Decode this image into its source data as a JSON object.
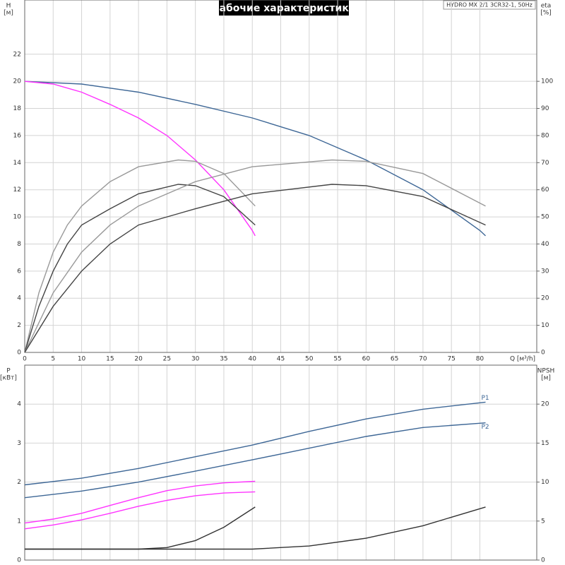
{
  "chart_data": [
    {
      "type": "line",
      "title": "Рабочие характеристики",
      "subtitle": "HYDRO MX 2/1 3CR32-1, 50Hz",
      "ylabel": "H",
      "yunit": "[м]",
      "y2label": "eta",
      "y2unit": "[%]",
      "xlabel": "Q [м³/h]",
      "xlim": [
        0,
        90
      ],
      "xticks": [
        0,
        5,
        10,
        15,
        20,
        25,
        30,
        35,
        40,
        45,
        50,
        55,
        60,
        65,
        70,
        75,
        80
      ],
      "ylim": [
        0,
        26
      ],
      "yticks": [
        0,
        2,
        4,
        6,
        8,
        10,
        12,
        14,
        16,
        18,
        20,
        22
      ],
      "y2lim": [
        0,
        130
      ],
      "y2ticks": [
        0,
        10,
        20,
        30,
        40,
        50,
        60,
        70,
        80,
        90,
        100
      ],
      "grid": true,
      "series": [
        {
          "color": "#3e6796",
          "x": [
            0,
            10,
            20,
            30,
            40,
            50,
            60,
            70,
            80,
            81
          ],
          "values": [
            20,
            19.8,
            19.2,
            18.3,
            17.3,
            16.0,
            14.2,
            12.0,
            9.0,
            8.6
          ]
        },
        {
          "color": "#ff33ff",
          "x": [
            0,
            5,
            10,
            15,
            20,
            25,
            30,
            35,
            40,
            40.5
          ],
          "values": [
            20,
            19.8,
            19.2,
            18.3,
            17.3,
            16.0,
            14.2,
            12.0,
            9.0,
            8.6
          ]
        },
        {
          "color": "#999999",
          "axis": "y2",
          "x": [
            0,
            2.5,
            5,
            7.5,
            10,
            15,
            20,
            27,
            30,
            35,
            40.5
          ],
          "values": [
            0,
            22,
            37,
            47,
            54,
            63,
            68.5,
            71,
            70.5,
            66,
            54
          ]
        },
        {
          "color": "#444444",
          "axis": "y2",
          "x": [
            0,
            2.5,
            5,
            7.5,
            10,
            15,
            20,
            27,
            30,
            35,
            40.5
          ],
          "values": [
            0,
            17,
            30,
            40,
            47,
            53,
            58.5,
            62,
            61.5,
            57.5,
            47
          ]
        },
        {
          "color": "#999999",
          "axis": "y2",
          "x": [
            0,
            5,
            10,
            15,
            20,
            30,
            40,
            54,
            60,
            70,
            81
          ],
          "values": [
            0,
            22,
            37,
            47,
            54,
            63,
            68.5,
            71,
            70.5,
            66,
            54
          ]
        },
        {
          "color": "#444444",
          "axis": "y2",
          "x": [
            0,
            5,
            10,
            15,
            20,
            30,
            40,
            54,
            60,
            70,
            81
          ],
          "values": [
            0,
            17,
            30,
            40,
            47,
            53,
            58.5,
            62,
            61.5,
            57.5,
            47
          ]
        }
      ]
    },
    {
      "type": "line",
      "ylabel": "P",
      "yunit": "[кВт]",
      "y2label": "NPSH",
      "y2unit": "[м]",
      "xlim": [
        0,
        90
      ],
      "ylim": [
        0,
        5
      ],
      "yticks": [
        0,
        1,
        2,
        3,
        4
      ],
      "y2lim": [
        0,
        25
      ],
      "y2ticks": [
        0,
        5,
        10,
        15,
        20
      ],
      "grid": true,
      "series": [
        {
          "name": "P1",
          "color": "#3e6796",
          "x": [
            0,
            10,
            20,
            30,
            40,
            50,
            60,
            70,
            81
          ],
          "values": [
            1.93,
            2.1,
            2.35,
            2.65,
            2.95,
            3.3,
            3.62,
            3.87,
            4.05
          ]
        },
        {
          "name": "P2",
          "color": "#3e6796",
          "x": [
            0,
            10,
            20,
            30,
            40,
            50,
            60,
            70,
            81
          ],
          "values": [
            1.6,
            1.77,
            2.0,
            2.28,
            2.57,
            2.87,
            3.17,
            3.4,
            3.52
          ]
        },
        {
          "color": "#ff33ff",
          "x": [
            0,
            5,
            10,
            15,
            20,
            25,
            30,
            35,
            40.5
          ],
          "values": [
            0.95,
            1.05,
            1.2,
            1.4,
            1.6,
            1.78,
            1.9,
            1.98,
            2.02
          ]
        },
        {
          "color": "#ff33ff",
          "x": [
            0,
            5,
            10,
            15,
            20,
            25,
            30,
            35,
            40.5
          ],
          "values": [
            0.8,
            0.9,
            1.03,
            1.2,
            1.38,
            1.53,
            1.65,
            1.72,
            1.75
          ]
        },
        {
          "color": "#333333",
          "axis": "y2",
          "x": [
            0,
            20,
            25,
            30,
            35,
            40.5
          ],
          "values": [
            1.4,
            1.4,
            1.6,
            2.5,
            4.2,
            6.8
          ]
        },
        {
          "color": "#333333",
          "axis": "y2",
          "x": [
            0,
            40,
            50,
            60,
            70,
            81
          ],
          "values": [
            1.4,
            1.4,
            1.8,
            2.8,
            4.4,
            6.8
          ]
        }
      ]
    }
  ]
}
